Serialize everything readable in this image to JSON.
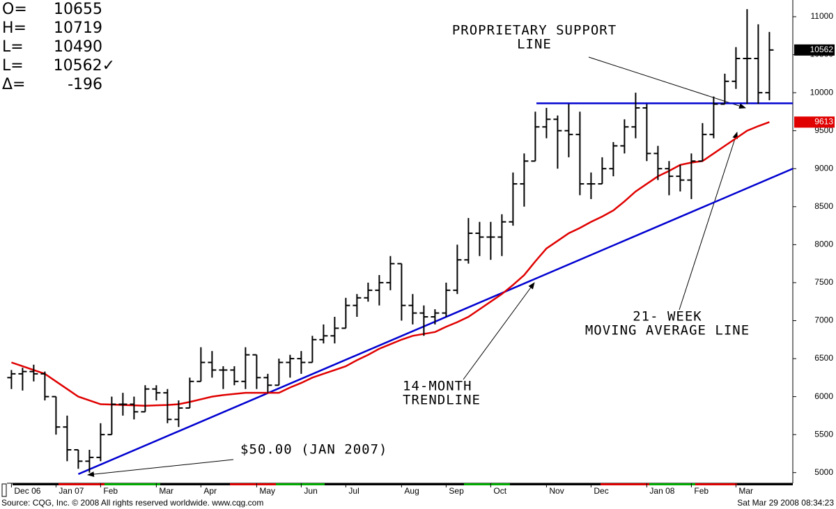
{
  "chart_data": {
    "type": "ohlc",
    "readout": [
      {
        "label": "O=",
        "value": 10655
      },
      {
        "label": "H=",
        "value": 10719
      },
      {
        "label": "L=",
        "value": 10490
      },
      {
        "label": "L=",
        "value": "10562✓"
      },
      {
        "label": "Δ=",
        "value": -196
      }
    ],
    "color": "#000000",
    "open": [
      6250,
      6300,
      6330,
      6300,
      6000,
      5600,
      5300,
      5150,
      5200,
      5500,
      5900,
      5900,
      5800,
      6100,
      6050,
      5700,
      5850,
      6200,
      6450,
      6350,
      6350,
      6200,
      6550,
      6250,
      6150,
      6450,
      6500,
      6450,
      6750,
      6800,
      6900,
      7200,
      7300,
      7400,
      7500,
      7750,
      7200,
      7100,
      7050,
      7100,
      7400,
      7800,
      8150,
      8100,
      8100,
      8300,
      8800,
      9100,
      9550,
      9650,
      9500,
      9450,
      8800,
      8800,
      9000,
      9300,
      9550,
      9800,
      9200,
      9000,
      8900,
      8850,
      9100,
      9450,
      9850,
      10150,
      10450,
      10450,
      10000
    ],
    "high": [
      6350,
      6380,
      6420,
      6330,
      6000,
      5750,
      5300,
      5300,
      5650,
      6000,
      6050,
      6000,
      6150,
      6150,
      6100,
      5950,
      6250,
      6650,
      6600,
      6400,
      6400,
      6650,
      6550,
      6300,
      6500,
      6550,
      6600,
      6800,
      6950,
      7050,
      7300,
      7350,
      7500,
      7600,
      7850,
      7750,
      7350,
      7200,
      7150,
      7500,
      8000,
      8350,
      8300,
      8300,
      8400,
      8950,
      9200,
      9750,
      9800,
      9700,
      9850,
      9750,
      8950,
      9150,
      9350,
      9650,
      10000,
      9850,
      9300,
      9100,
      9050,
      9200,
      9600,
      9950,
      10250,
      10600,
      11100,
      10900,
      10800
    ],
    "low": [
      6100,
      6080,
      6200,
      5950,
      5500,
      5150,
      5050,
      5000,
      5150,
      5500,
      5750,
      5700,
      5800,
      5950,
      5650,
      5600,
      5850,
      6200,
      6250,
      6100,
      6150,
      6100,
      6100,
      6050,
      6150,
      6250,
      6300,
      6450,
      6700,
      6700,
      6900,
      7050,
      7250,
      7200,
      7400,
      7000,
      6950,
      6800,
      6950,
      7050,
      7350,
      7750,
      7850,
      7800,
      7850,
      8250,
      8500,
      9100,
      9400,
      9000,
      9150,
      8650,
      8600,
      8800,
      8900,
      9200,
      9400,
      9100,
      8850,
      8650,
      8700,
      8600,
      9100,
      9400,
      9850,
      10050,
      9850,
      9850,
      9900
    ],
    "close": [
      6300,
      6330,
      6300,
      6000,
      5600,
      5300,
      5150,
      5200,
      5500,
      5900,
      5900,
      5800,
      6100,
      6050,
      5700,
      5850,
      6200,
      6450,
      6350,
      6350,
      6200,
      6550,
      6250,
      6150,
      6450,
      6500,
      6450,
      6750,
      6800,
      6900,
      7200,
      7300,
      7400,
      7500,
      7750,
      7200,
      7100,
      7050,
      7100,
      7400,
      7800,
      8150,
      8100,
      8100,
      8300,
      8800,
      9100,
      9550,
      9650,
      9500,
      9450,
      8800,
      8800,
      9000,
      9300,
      9550,
      9800,
      9200,
      9000,
      8900,
      8850,
      9100,
      9450,
      9850,
      10150,
      10450,
      10450,
      10000,
      10562
    ],
    "moving_average": {
      "color": "#e00000",
      "values": [
        6450,
        6400,
        6350,
        6300,
        6200,
        6100,
        6000,
        5950,
        5900,
        5895,
        5890,
        5885,
        5880,
        5885,
        5890,
        5900,
        5930,
        5965,
        6000,
        6020,
        6035,
        6050,
        6050,
        6050,
        6050,
        6120,
        6180,
        6250,
        6300,
        6350,
        6400,
        6480,
        6550,
        6630,
        6690,
        6750,
        6800,
        6825,
        6850,
        6920,
        6980,
        7050,
        7150,
        7250,
        7350,
        7470,
        7600,
        7780,
        7950,
        8050,
        8150,
        8220,
        8300,
        8370,
        8450,
        8570,
        8700,
        8800,
        8900,
        8970,
        9050,
        9080,
        9100,
        9200,
        9300,
        9400,
        9500,
        9560,
        9613
      ]
    },
    "trendlines": [
      {
        "color": "#0000d0",
        "x": [
          6,
          70.1
        ],
        "values": [
          4980,
          9000
        ]
      },
      {
        "color": "#0000d0",
        "x": [
          47.1,
          70.1
        ],
        "values": [
          9860,
          9860
        ]
      }
    ],
    "xlim": [
      -0.4,
      70.1
    ],
    "ylim": [
      4860,
      11220
    ],
    "yticks": [
      5000,
      5500,
      6000,
      6500,
      7000,
      7500,
      8000,
      8500,
      9000,
      9500,
      10000,
      10500,
      11000
    ],
    "xticks": [
      {
        "value": 0,
        "label": "Dec 06"
      },
      {
        "value": 4,
        "label": "Jan 07"
      },
      {
        "value": 8,
        "label": "Feb"
      },
      {
        "value": 13,
        "label": "Mar"
      },
      {
        "value": 17,
        "label": "Apr"
      },
      {
        "value": 22,
        "label": "May"
      },
      {
        "value": 26,
        "label": "Jun"
      },
      {
        "value": 30,
        "label": "Jul"
      },
      {
        "value": 35,
        "label": "Aug"
      },
      {
        "value": 39,
        "label": "Sep"
      },
      {
        "value": 43,
        "label": "Oct"
      },
      {
        "value": 48,
        "label": "Nov"
      },
      {
        "value": 52,
        "label": "Dec"
      },
      {
        "value": 57,
        "label": "Jan 08"
      },
      {
        "value": 61,
        "label": "Feb"
      },
      {
        "value": 65,
        "label": "Mar"
      }
    ],
    "annotations": [
      {
        "lines": [
          "PROPRIETARY SUPPORT",
          "LINE"
        ]
      },
      {
        "lines": [
          "$50.00 (JAN 2007)"
        ]
      },
      {
        "lines": [
          "14-MONTH",
          "TRENDLINE"
        ]
      },
      {
        "lines": [
          "21- WEEK",
          "MOVING AVERAGE LINE"
        ]
      }
    ],
    "source": "Source: CQG, Inc. © 2008 All rights reserved worldwide. www.cqg.com",
    "timestamp": "Sat Mar 29 2008 08:34:23"
  }
}
